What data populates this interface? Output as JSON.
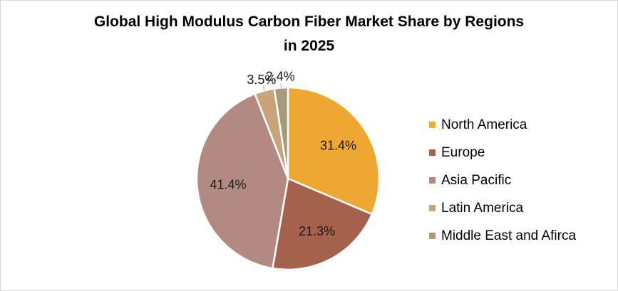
{
  "chart_data": {
    "type": "pie",
    "title": "Global High Modulus Carbon Fiber Market Share by Regions in 2025",
    "title_lines": [
      "Global High Modulus Carbon Fiber Market Share by Regions",
      "in 2025"
    ],
    "slices": [
      {
        "label": "North America",
        "value": 31.4,
        "display": "31.4%",
        "color": "#eea832"
      },
      {
        "label": "Europe",
        "value": 21.3,
        "display": "21.3%",
        "color": "#a4624c"
      },
      {
        "label": "Asia Pacific",
        "value": 41.4,
        "display": "41.4%",
        "color": "#b38a81"
      },
      {
        "label": "Latin America",
        "value": 3.5,
        "display": "3.5%",
        "color": "#c9a37a"
      },
      {
        "label": "Middle East and Afirca",
        "value": 2.4,
        "display": "2.4%",
        "color": "#a89b7c"
      }
    ],
    "legend_position": "right"
  }
}
